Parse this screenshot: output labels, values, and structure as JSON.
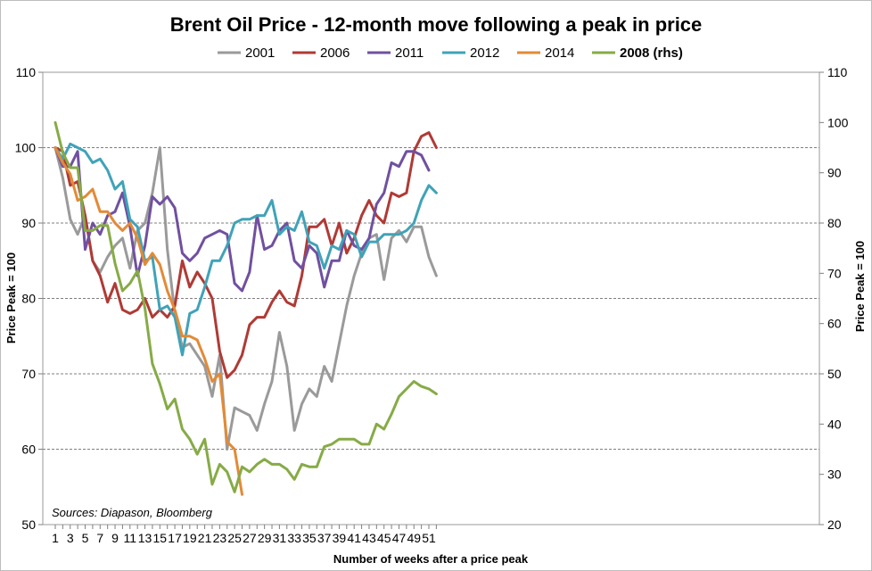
{
  "chart_data": {
    "type": "line",
    "title": "Brent Oil Price - 12-month move following a peak in price",
    "xlabel": "Number of weeks after a price peak",
    "ylabel": "Price Peak = 100",
    "y2label": "Price Peak = 100",
    "source": "Sources: Diapason, Bloomberg",
    "xlim": [
      1,
      52
    ],
    "ylim": [
      50,
      110
    ],
    "y2lim": [
      20,
      110
    ],
    "xticks": [
      "1",
      "3",
      "5",
      "7",
      "9",
      "11",
      "13",
      "15",
      "17",
      "19",
      "21",
      "23",
      "25",
      "27",
      "29",
      "31",
      "33",
      "35",
      "37",
      "39",
      "41",
      "43",
      "45",
      "47",
      "49",
      "51"
    ],
    "yticks": [
      "50",
      "60",
      "70",
      "80",
      "90",
      "100",
      "110"
    ],
    "y2ticks": [
      "20",
      "30",
      "40",
      "50",
      "60",
      "70",
      "80",
      "90",
      "100",
      "110"
    ],
    "grid": true,
    "legend_position": "top",
    "series": [
      {
        "name": "2001",
        "color": "#9a9a9a",
        "axis": "left",
        "bold": false,
        "values": [
          100,
          96,
          90.5,
          88.5,
          91,
          85,
          83.5,
          85.5,
          87,
          88,
          84,
          89,
          90,
          94,
          100,
          86.5,
          78,
          73.5,
          74,
          72.5,
          71,
          67,
          72.5,
          60,
          65.5,
          65,
          64.5,
          62.5,
          66,
          69,
          75.5,
          71,
          62.5,
          66,
          68,
          67,
          71,
          69,
          74,
          79,
          83,
          86,
          88,
          88.5,
          82.5,
          88,
          89,
          87.5,
          89.5,
          89.5,
          85.5,
          83
        ]
      },
      {
        "name": "2006",
        "color": "#b03a35",
        "axis": "left",
        "bold": false,
        "values": [
          100,
          99.5,
          95,
          95.5,
          91,
          85,
          83,
          79.5,
          82,
          78.5,
          78,
          78.5,
          80,
          77.5,
          78.5,
          77.5,
          79,
          85,
          81.5,
          83.5,
          82,
          80,
          73,
          69.5,
          70.5,
          72.5,
          76.5,
          77.5,
          77.5,
          79.5,
          81,
          79.5,
          79,
          83,
          89.5,
          89.5,
          90.5,
          87,
          90,
          86,
          88,
          91,
          93,
          91,
          90,
          94,
          93.5,
          94,
          99.5,
          101.5,
          102,
          100
        ]
      },
      {
        "name": "2011",
        "color": "#7050a0",
        "axis": "left",
        "bold": false,
        "values": [
          100,
          97.5,
          97.5,
          99.5,
          86.5,
          90,
          88.5,
          91,
          91.5,
          94,
          89.5,
          83,
          87,
          93.5,
          92.5,
          93.5,
          92,
          86,
          85,
          86,
          88,
          88.5,
          89,
          88.5,
          82,
          81,
          83.5,
          91,
          86.5,
          87,
          89,
          90,
          85,
          84,
          87,
          86,
          81.5,
          85,
          85,
          89,
          87,
          86.5,
          88,
          92.5,
          94,
          98,
          97.5,
          99.5,
          99.5,
          99,
          97
        ]
      },
      {
        "name": "2012",
        "color": "#3fa3b8",
        "axis": "left",
        "bold": false,
        "values": [
          100,
          98.5,
          100.5,
          100,
          99.5,
          98,
          98.5,
          97,
          94.5,
          95.5,
          90.5,
          89.5,
          85,
          85.5,
          78.5,
          79,
          77.5,
          72.5,
          78,
          78.5,
          81.5,
          85,
          85,
          87,
          90,
          90.5,
          90.5,
          91,
          91,
          93,
          88.5,
          89.5,
          89,
          91.5,
          87.5,
          87,
          84,
          87,
          86.5,
          89,
          88.5,
          85.5,
          87.5,
          87.5,
          88.5,
          88.5,
          88.5,
          89,
          90,
          93,
          95,
          94
        ]
      },
      {
        "name": "2014",
        "color": "#e38a36",
        "axis": "left",
        "bold": false,
        "values": [
          100,
          98,
          96.5,
          93,
          93.5,
          94.5,
          91.5,
          91.5,
          90,
          89,
          90,
          88,
          84.5,
          86,
          84.5,
          81,
          78.5,
          75,
          75,
          74.5,
          72,
          69,
          70,
          61,
          60,
          54
        ]
      },
      {
        "name": "2008 (rhs)",
        "color": "#86ab46",
        "axis": "right",
        "bold": true,
        "values": [
          100,
          94,
          91,
          91,
          78.5,
          78.5,
          79.5,
          79.5,
          72,
          66.5,
          68,
          70.5,
          63,
          52,
          48,
          43,
          45,
          39,
          37,
          34,
          37,
          28,
          32,
          30.5,
          26.5,
          31.5,
          30.5,
          32,
          33,
          32,
          32,
          31,
          29,
          32,
          31.5,
          31.5,
          35.5,
          36,
          37,
          37,
          37,
          36,
          36,
          40,
          39,
          42,
          45.5,
          47,
          48.5,
          47.5,
          47,
          46
        ]
      }
    ]
  }
}
